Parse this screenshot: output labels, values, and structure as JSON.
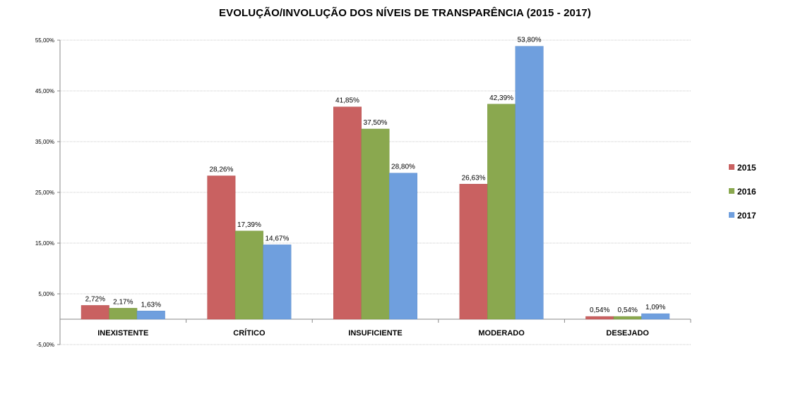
{
  "chart_data": {
    "type": "bar",
    "title": "EVOLUÇÃO/INVOLUÇÃO DOS NÍVEIS DE TRANSPARÊNCIA (2015 - 2017)",
    "categories": [
      "INEXISTENTE",
      "CRÍTICO",
      "INSUFICIENTE",
      "MODERADO",
      "DESEJADO"
    ],
    "series": [
      {
        "name": "2015",
        "color": "#c96161",
        "values": [
          2.72,
          28.26,
          41.85,
          26.63,
          0.54
        ],
        "labels": [
          "2,72%",
          "28,26%",
          "41,85%",
          "26,63%",
          "0,54%"
        ]
      },
      {
        "name": "2016",
        "color": "#8aa84f",
        "values": [
          2.17,
          17.39,
          37.5,
          42.39,
          0.54
        ],
        "labels": [
          "2,17%",
          "17,39%",
          "37,50%",
          "42,39%",
          "0,54%"
        ]
      },
      {
        "name": "2017",
        "color": "#6f9fde",
        "values": [
          1.63,
          14.67,
          28.8,
          53.8,
          1.09
        ],
        "labels": [
          "1,63%",
          "14,67%",
          "28,80%",
          "53,80%",
          "1,09%"
        ]
      }
    ],
    "ylim": [
      -5,
      55
    ],
    "yticks": [
      {
        "value": 55,
        "label": "55,00%"
      },
      {
        "value": 45,
        "label": "45,00%"
      },
      {
        "value": 35,
        "label": "35,00%"
      },
      {
        "value": 25,
        "label": "25,00%"
      },
      {
        "value": 15,
        "label": "15,00%"
      },
      {
        "value": 5,
        "label": "5,00%"
      },
      {
        "value": -5,
        "label": "-5,00%"
      }
    ],
    "grid": true,
    "legend_position": "right"
  }
}
